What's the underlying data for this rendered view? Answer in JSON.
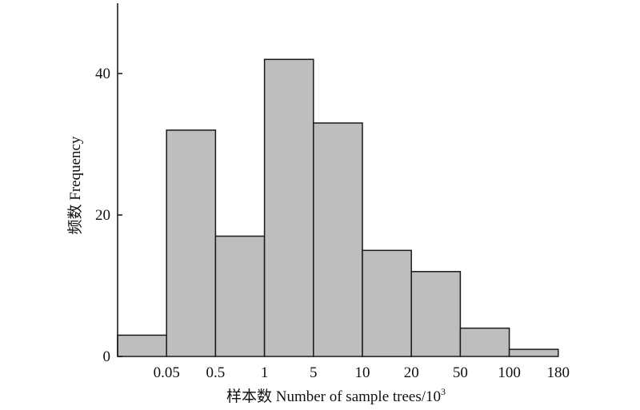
{
  "chart_data": {
    "type": "bar",
    "bins": [
      "<0.05",
      "0.05-0.5",
      "0.5-1",
      "1-5",
      "5-10",
      "10-20",
      "20-50",
      "50-100",
      "100-180"
    ],
    "values": [
      3,
      32,
      17,
      42,
      33,
      15,
      12,
      4,
      1
    ],
    "x_tick_labels": [
      "0.05",
      "0.5",
      "1",
      "5",
      "10",
      "20",
      "50",
      "100",
      "180"
    ],
    "y_ticks": [
      0,
      20,
      40
    ],
    "ylim": [
      0,
      50
    ],
    "xlabel": "样本数 Number of sample trees/10",
    "xlabel_superscript": "3",
    "ylabel": "频数 Frequency",
    "bar_color": "#bebebe",
    "edge_color": "#1a1a1a",
    "grid": false,
    "legend": "none"
  }
}
